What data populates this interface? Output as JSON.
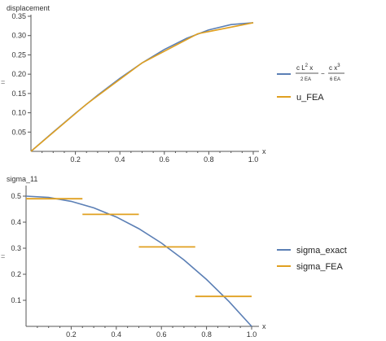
{
  "chart_data": [
    {
      "type": "line",
      "ylabel": "displacement",
      "xlabel": "x",
      "xlim": [
        0,
        1.0
      ],
      "ylim": [
        0,
        0.35
      ],
      "xticks": [
        "0.2",
        "0.4",
        "0.6",
        "0.8",
        "1.0"
      ],
      "yticks": [
        "0.05",
        "0.10",
        "0.15",
        "0.20",
        "0.25",
        "0.30",
        "0.35"
      ],
      "series": [
        {
          "name": "c L² x / 2 EA − c x³ / 6 EA",
          "color": "#5b7fb5",
          "kind": "curve",
          "x": [
            0,
            0.1,
            0.2,
            0.3,
            0.4,
            0.5,
            0.6,
            0.7,
            0.8,
            0.9,
            1.0
          ],
          "y": [
            0,
            0.0498,
            0.0987,
            0.1455,
            0.1893,
            0.2292,
            0.264,
            0.2928,
            0.3147,
            0.3285,
            0.3333
          ]
        },
        {
          "name": "u_FEA",
          "color": "#e0a020",
          "kind": "segments",
          "x": [
            0,
            0.25,
            0.5,
            0.75,
            1.0
          ],
          "y": [
            0,
            0.1224,
            0.2292,
            0.3047,
            0.3333
          ]
        }
      ],
      "legend": {
        "curve_num": "c L",
        "curve_num_sup": "2",
        "curve_num_tail": " x",
        "curve_den": "2 EA",
        "minus": "−",
        "curve2_num": "c x",
        "curve2_num_sup": "3",
        "curve2_den": "6 EA",
        "fea_label": "u_FEA"
      },
      "side_mark": "="
    },
    {
      "type": "line",
      "ylabel": "sigma_11",
      "xlabel": "x",
      "xlim": [
        0,
        1.0
      ],
      "ylim": [
        0,
        0.5
      ],
      "xticks": [
        "0.2",
        "0.4",
        "0.6",
        "0.8",
        "1.0"
      ],
      "yticks": [
        "0.1",
        "0.2",
        "0.3",
        "0.4",
        "0.5"
      ],
      "series": [
        {
          "name": "sigma_exact",
          "color": "#5b7fb5",
          "kind": "curve",
          "x": [
            0,
            0.1,
            0.2,
            0.3,
            0.4,
            0.5,
            0.6,
            0.7,
            0.8,
            0.9,
            1.0
          ],
          "y": [
            0.5,
            0.495,
            0.48,
            0.455,
            0.42,
            0.375,
            0.32,
            0.255,
            0.18,
            0.095,
            0.0
          ]
        },
        {
          "name": "sigma_FEA",
          "color": "#e0a020",
          "kind": "steps",
          "steps": [
            {
              "x0": 0.0,
              "x1": 0.25,
              "y": 0.49
            },
            {
              "x0": 0.25,
              "x1": 0.5,
              "y": 0.43
            },
            {
              "x0": 0.5,
              "x1": 0.75,
              "y": 0.305
            },
            {
              "x0": 0.75,
              "x1": 1.0,
              "y": 0.115
            }
          ]
        }
      ],
      "legend": {
        "exact_label": "sigma_exact",
        "fea_label": "sigma_FEA"
      },
      "side_mark": "="
    }
  ]
}
